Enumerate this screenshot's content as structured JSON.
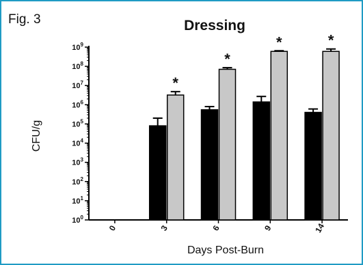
{
  "figure_label": "Fig. 3",
  "chart_data": {
    "type": "bar",
    "title": "Dressing",
    "xlabel": "Days Post-Burn",
    "ylabel": "CFU/g",
    "yscale": "log10",
    "ylim": [
      1,
      1000000000
    ],
    "y_tick_labels": [
      {
        "base": "10",
        "exp": "0"
      },
      {
        "base": "10",
        "exp": "1"
      },
      {
        "base": "10",
        "exp": "2"
      },
      {
        "base": "10",
        "exp": "3"
      },
      {
        "base": "10",
        "exp": "4"
      },
      {
        "base": "10",
        "exp": "5"
      },
      {
        "base": "10",
        "exp": "6"
      },
      {
        "base": "10",
        "exp": "7"
      },
      {
        "base": "10",
        "exp": "8"
      },
      {
        "base": "10",
        "exp": "9"
      }
    ],
    "categories": [
      "0",
      "3",
      "6",
      "9",
      "14"
    ],
    "series": [
      {
        "color": "#000000",
        "values": [
          1,
          80000,
          550000,
          1400000,
          400000
        ],
        "error_upper": [
          null,
          200000,
          800000,
          2700000,
          600000
        ]
      },
      {
        "color": "#c8c8c8",
        "values": [
          1,
          3200000,
          70000000,
          600000000,
          600000000
        ],
        "error_upper": [
          null,
          4800000,
          85000000,
          650000000,
          800000000
        ]
      }
    ],
    "significance_marker": "*",
    "significant_categories": [
      "3",
      "6",
      "9",
      "14"
    ],
    "grid": false,
    "legend": "none"
  }
}
